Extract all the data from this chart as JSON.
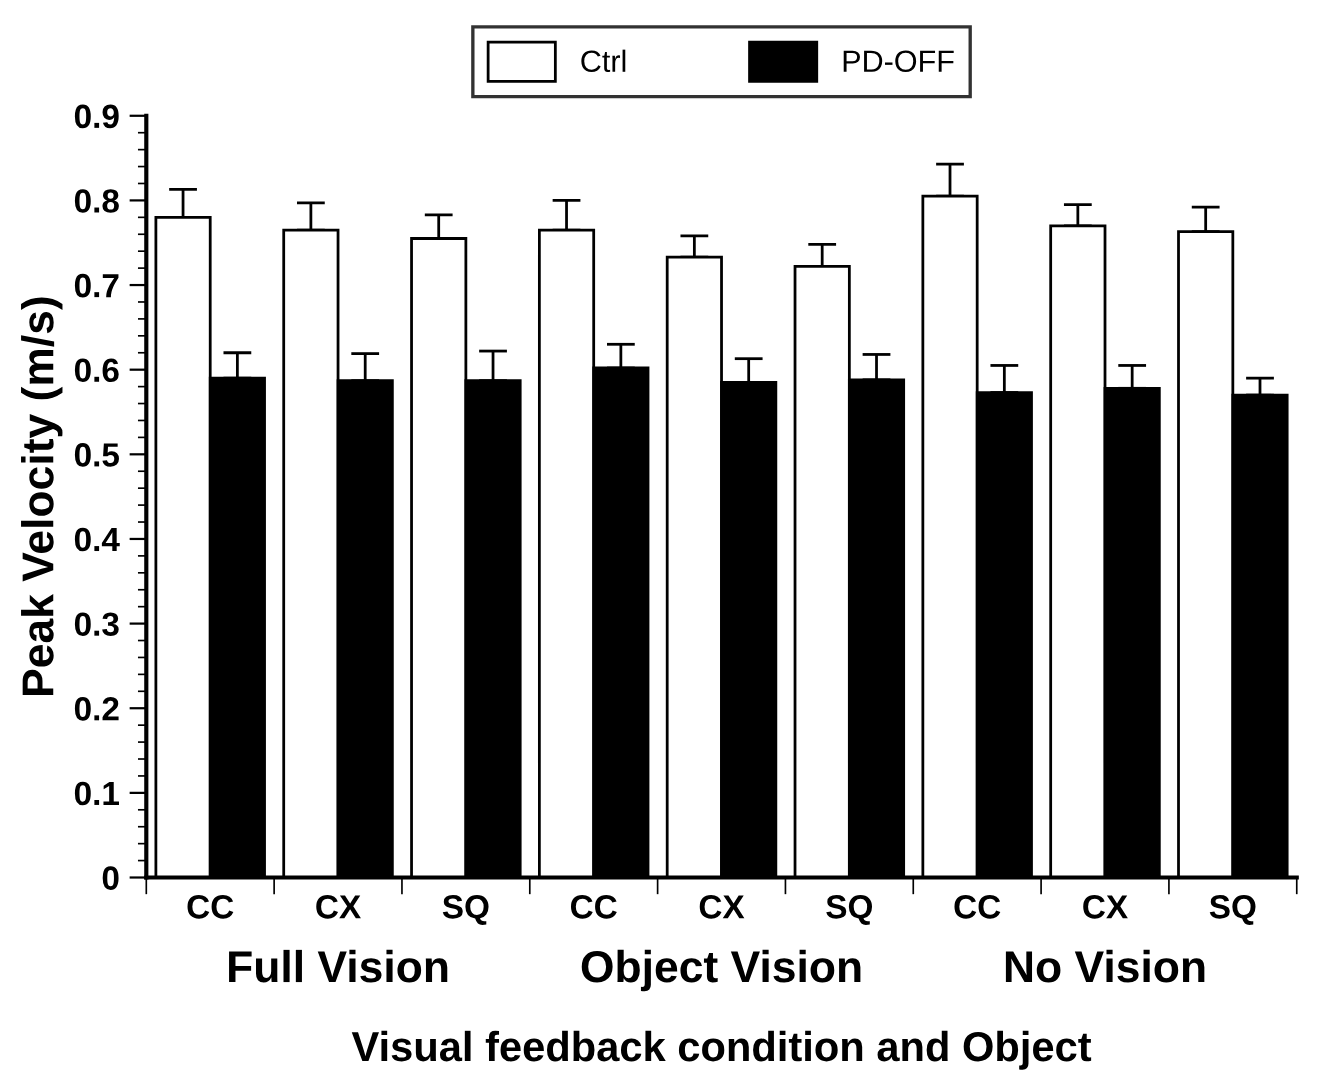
{
  "chart_data": {
    "type": "bar",
    "xlabel": "Visual feedback condition and Object",
    "ylabel": "Peak Velocity (m/s)",
    "categories": [
      "CC",
      "CX",
      "SQ",
      "CC",
      "CX",
      "SQ",
      "CC",
      "CX",
      "SQ"
    ],
    "series": [
      {
        "name": "Ctrl",
        "color": "#ffffff",
        "values": [
          0.78,
          0.765,
          0.755,
          0.765,
          0.733,
          0.722,
          0.805,
          0.77,
          0.763
        ],
        "errors": [
          [
            0.78,
            0.813
          ],
          [
            0.765,
            0.797
          ],
          [
            0.755,
            0.783
          ],
          [
            0.765,
            0.8
          ],
          [
            0.733,
            0.758
          ],
          [
            0.722,
            0.748
          ],
          [
            0.805,
            0.843
          ],
          [
            0.77,
            0.795
          ],
          [
            0.763,
            0.792
          ]
        ]
      },
      {
        "name": "PD-OFF",
        "color": "#000000",
        "values": [
          0.59,
          0.587,
          0.587,
          0.602,
          0.585,
          0.588,
          0.573,
          0.578,
          0.57
        ],
        "errors": [
          [
            0.59,
            0.62
          ],
          [
            0.587,
            0.619
          ],
          [
            0.587,
            0.622
          ],
          [
            0.602,
            0.63
          ],
          [
            0.585,
            0.613
          ],
          [
            0.588,
            0.618
          ],
          [
            0.573,
            0.605
          ],
          [
            0.578,
            0.605
          ],
          [
            0.57,
            0.59
          ]
        ]
      }
    ],
    "annotations": [
      "Full Vision",
      "Object Vision",
      "No Vision"
    ],
    "ylim": [
      0,
      0.9
    ],
    "yticks": [
      {
        "value": 0,
        "label": "0"
      },
      0.1,
      0.2,
      0.3,
      0.4,
      0.5,
      0.6,
      0.7,
      0.8,
      0.9
    ],
    "grid": false,
    "legend": "top"
  }
}
